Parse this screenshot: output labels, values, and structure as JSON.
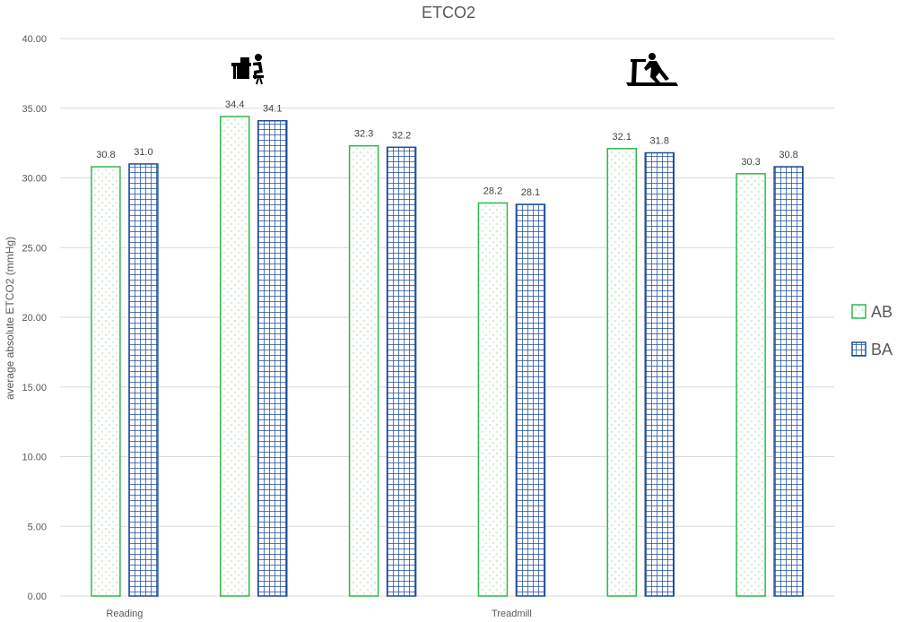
{
  "colors": {
    "ab": "#2FB84A",
    "ba": "#1F4E9A",
    "grid": "#D9D9D9",
    "text": "#595959"
  },
  "icons": [
    "desk-worker-icon",
    "treadmill-runner-icon"
  ],
  "chart_data": {
    "type": "bar",
    "title": "ETCO2",
    "xlabel": "",
    "ylabel": "average absolute ETCO2 (mmHg)",
    "ylim": [
      0,
      40
    ],
    "yticks": [
      "0.00",
      "5.00",
      "10.00",
      "15.00",
      "20.00",
      "25.00",
      "30.00",
      "35.00",
      "40.00"
    ],
    "categories": [
      "Reading",
      "",
      "",
      "Treadmill",
      "",
      ""
    ],
    "grid": true,
    "legend_position": "right",
    "series": [
      {
        "name": "AB",
        "values": [
          30.8,
          34.4,
          32.3,
          28.2,
          32.1,
          30.3
        ],
        "labels": [
          "30.8",
          "34.4",
          "32.3",
          "28.2",
          "32.1",
          "30.3"
        ],
        "pattern": "dots"
      },
      {
        "name": "BA",
        "values": [
          31.0,
          34.1,
          32.2,
          28.1,
          31.8,
          30.8
        ],
        "labels": [
          "31.0",
          "34.1",
          "32.2",
          "28.1",
          "31.8",
          "30.8"
        ],
        "pattern": "grid"
      }
    ]
  }
}
